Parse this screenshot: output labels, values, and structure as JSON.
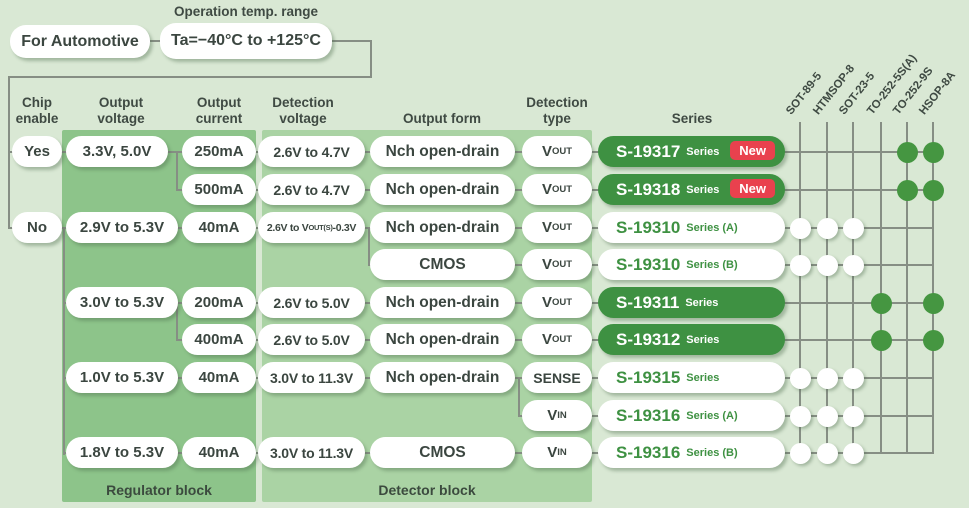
{
  "top": {
    "for_automotive": "For Automotive",
    "temp_label": "Operation temp. range",
    "temp_range": "Ta=−40°C to +125°C"
  },
  "headers": [
    "Chip\nenable",
    "Output\nvoltage",
    "Output\ncurrent",
    "Detection\nvoltage",
    "Output form",
    "Detection\ntype",
    "Series"
  ],
  "blocks": {
    "regulator": "Regulator block",
    "detector": "Detector block"
  },
  "chip_enable": {
    "yes": "Yes",
    "no": "No"
  },
  "output_voltage": [
    "3.3V, 5.0V",
    "2.9V to 5.3V",
    "3.0V to 5.3V",
    "1.0V to 5.3V",
    "1.8V to 5.3V"
  ],
  "output_current": [
    "250mA",
    "500mA",
    "40mA",
    "200mA",
    "400mA",
    "40mA",
    "40mA"
  ],
  "detection_voltage": [
    "2.6V to 4.7V",
    "2.6V to 4.7V",
    "2.6V to 5.0V",
    "2.6V to 5.0V",
    "3.0V to 11.3V",
    "3.0V to 11.3V"
  ],
  "detection_voltage_special": {
    "pre": "2.6V to V",
    "sub": "OUT(S)",
    "post": "-0.3V"
  },
  "output_form": [
    "Nch open-drain",
    "Nch open-drain",
    "Nch open-drain",
    "CMOS",
    "Nch open-drain",
    "Nch open-drain",
    "Nch open-drain",
    "CMOS"
  ],
  "detection_type": [
    {
      "main": "V",
      "sub": "OUT"
    },
    {
      "main": "V",
      "sub": "OUT"
    },
    {
      "main": "V",
      "sub": "OUT"
    },
    {
      "main": "V",
      "sub": "OUT"
    },
    {
      "main": "V",
      "sub": "OUT"
    },
    {
      "main": "V",
      "sub": "OUT"
    },
    {
      "main": "SENSE",
      "sub": ""
    },
    {
      "main": "V",
      "sub": "IN"
    },
    {
      "main": "V",
      "sub": "IN"
    }
  ],
  "series": [
    {
      "name": "S-19317",
      "suffix": "Series",
      "badge": "New",
      "style": "green"
    },
    {
      "name": "S-19318",
      "suffix": "Series",
      "badge": "New",
      "style": "green"
    },
    {
      "name": "S-19310",
      "suffix": "Series (A)",
      "style": "white"
    },
    {
      "name": "S-19310",
      "suffix": "Series (B)",
      "style": "white"
    },
    {
      "name": "S-19311",
      "suffix": "Series",
      "style": "green"
    },
    {
      "name": "S-19312",
      "suffix": "Series",
      "style": "green"
    },
    {
      "name": "S-19315",
      "suffix": "Series",
      "style": "white"
    },
    {
      "name": "S-19316",
      "suffix": "Series (A)",
      "style": "white"
    },
    {
      "name": "S-19316",
      "suffix": "Series (B)",
      "style": "white"
    }
  ],
  "packages": [
    "SOT-89-5",
    "HTMSOP-8",
    "SOT-23-5",
    "TO-252-5S(A)",
    "TO-252-9S",
    "HSOP-8A"
  ],
  "matrix": {
    "rows": [
      {
        "dots": [
          0,
          0,
          0,
          0,
          1,
          1
        ],
        "color": "green"
      },
      {
        "dots": [
          0,
          0,
          0,
          0,
          1,
          1
        ],
        "color": "green"
      },
      {
        "dots": [
          1,
          1,
          1,
          0,
          0,
          0
        ],
        "color": "white"
      },
      {
        "dots": [
          1,
          1,
          1,
          0,
          0,
          0
        ],
        "color": "white"
      },
      {
        "dots": [
          0,
          0,
          0,
          1,
          0,
          1
        ],
        "color": "green"
      },
      {
        "dots": [
          0,
          0,
          0,
          1,
          0,
          1
        ],
        "color": "green"
      },
      {
        "dots": [
          1,
          1,
          1,
          0,
          0,
          0
        ],
        "color": "white"
      },
      {
        "dots": [
          1,
          1,
          1,
          0,
          0,
          0
        ],
        "color": "white"
      },
      {
        "dots": [
          1,
          1,
          1,
          0,
          0,
          0
        ],
        "color": "white"
      }
    ]
  },
  "colors": {
    "green": "#3e9142",
    "red": "#e9414e",
    "panel_regulator": "#8dc48a",
    "panel_detector": "#aad3a4",
    "background": "#d9e8d4"
  }
}
